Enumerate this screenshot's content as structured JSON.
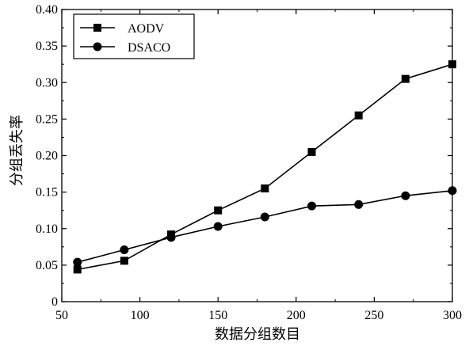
{
  "chart_data": {
    "type": "line",
    "title": "",
    "xlabel": "数据分组数目",
    "ylabel": "分组丢失率",
    "xlim": [
      50,
      300
    ],
    "ylim": [
      0,
      0.4
    ],
    "xticks": [
      "50",
      "100",
      "150",
      "200",
      "250",
      "300"
    ],
    "yticks": [
      "0",
      "0.05",
      "0.10",
      "0.15",
      "0.20",
      "0.25",
      "0.30",
      "0.35",
      "0.40"
    ],
    "grid": false,
    "legend_position": "top-left",
    "x": [
      60,
      90,
      120,
      150,
      180,
      210,
      240,
      270,
      300
    ],
    "series": [
      {
        "name": "AODV",
        "marker": "square",
        "color": "#000000",
        "values": [
          0.044,
          0.056,
          0.092,
          0.125,
          0.155,
          0.205,
          0.255,
          0.305,
          0.325
        ]
      },
      {
        "name": "DSACO",
        "marker": "circle",
        "color": "#000000",
        "values": [
          0.054,
          0.071,
          0.088,
          0.103,
          0.116,
          0.131,
          0.133,
          0.145,
          0.152
        ]
      }
    ]
  }
}
